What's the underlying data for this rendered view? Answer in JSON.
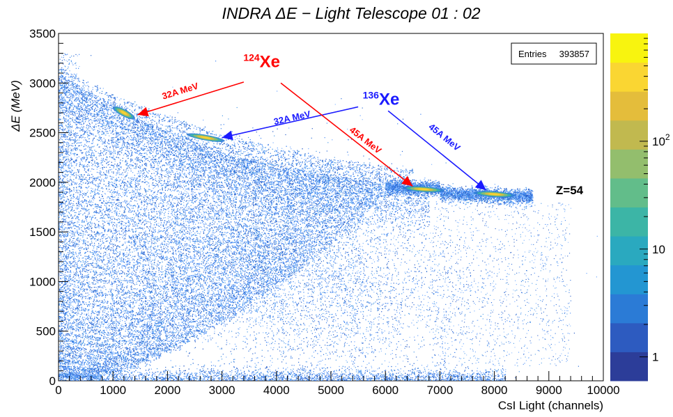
{
  "chart_data": {
    "type": "heatmap",
    "title": "INDRA  ΔE − Light  Telescope  01 : 02",
    "xlabel": "CsI Light (channels)",
    "ylabel": "ΔE  (MeV)",
    "xlim": [
      0,
      10000
    ],
    "ylim": [
      0,
      3500
    ],
    "x_ticks": [
      "0",
      "1000",
      "2000",
      "3000",
      "4000",
      "5000",
      "6000",
      "7000",
      "8000",
      "9000",
      "10000"
    ],
    "y_ticks": [
      "0",
      "500",
      "1000",
      "1500",
      "2000",
      "2500",
      "3000",
      "3500"
    ],
    "stats_box": {
      "label": "Entries",
      "value": "393857"
    },
    "colorbar": {
      "scale": "log",
      "range": [
        0.6,
        1000
      ],
      "tick_labels": [
        {
          "text": "1",
          "value": 1
        },
        {
          "text": "10",
          "value": 10
        },
        {
          "text": "10",
          "sup": "2",
          "value": 100
        }
      ],
      "colors": [
        "#2c3d99",
        "#2d5bc0",
        "#2b7bd6",
        "#2396d2",
        "#2aa9bf",
        "#3cb5a6",
        "#62bd8a",
        "#93be6d",
        "#c1b94f",
        "#e4bd3b",
        "#fad632",
        "#f8f40f"
      ]
    },
    "loci": [
      {
        "name": "Z=54",
        "x_range": [
          6000,
          8700
        ],
        "y_range": [
          1860,
          1980
        ],
        "peak_y": 1900
      }
    ],
    "hot_spots": [
      {
        "x": 1200,
        "y": 2700,
        "series": "124Xe 32A MeV"
      },
      {
        "x": 2700,
        "y": 2450,
        "series": "136Xe 32A MeV"
      },
      {
        "x": 6700,
        "y": 1930,
        "series": "124Xe 45A MeV"
      },
      {
        "x": 8000,
        "y": 1880,
        "series": "136Xe 45A MeV"
      }
    ],
    "annotations": [
      {
        "text_mass": "124",
        "text_element": "Xe",
        "color": "#ff0000",
        "x": 3730,
        "y": 3160
      },
      {
        "text_mass": "136",
        "text_element": "Xe",
        "color": "#1a1aff",
        "x": 5920,
        "y": 2780
      },
      {
        "label": "32A MeV",
        "color": "#ff0000",
        "x": 2250,
        "y": 2890,
        "from": [
          3400,
          3010
        ],
        "to": [
          1450,
          2680
        ]
      },
      {
        "label": "32A MeV",
        "color": "#1a1aff",
        "x": 4300,
        "y": 2620,
        "from": [
          5500,
          2760
        ],
        "to": [
          3000,
          2450
        ]
      },
      {
        "label": "45A MeV",
        "color": "#ff0000",
        "x": 5600,
        "y": 2400,
        "from": [
          4080,
          3000
        ],
        "to": [
          6500,
          1960
        ]
      },
      {
        "label": "45A MeV",
        "color": "#1a1aff",
        "x": 7050,
        "y": 2430,
        "from": [
          6050,
          2720
        ],
        "to": [
          7850,
          1920
        ]
      },
      {
        "label": "Z=54",
        "color": "#000000",
        "x": 9380,
        "y": 1880
      }
    ]
  }
}
